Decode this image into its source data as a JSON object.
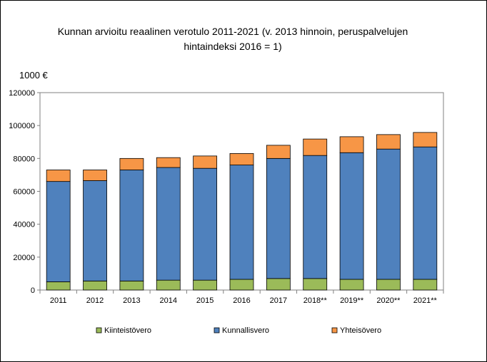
{
  "chart_data": {
    "type": "bar",
    "stacked": true,
    "title_lines": [
      "Kunnan arvioitu reaalinen verotulo 2011-2021 (v. 2013 hinnoin, peruspalvelujen",
      "hintaindeksi 2016 = 1)"
    ],
    "ylabel": "1000 €",
    "xlabel": "",
    "ylim": [
      0,
      120000
    ],
    "yticks": [
      0,
      20000,
      40000,
      60000,
      80000,
      100000,
      120000
    ],
    "grid": false,
    "legend_position": "bottom",
    "categories": [
      "2011",
      "2012",
      "2013",
      "2014",
      "2015",
      "2016",
      "2017",
      "2018**",
      "2019**",
      "2020**",
      "2021**"
    ],
    "series": [
      {
        "name": "Kiinteistövero",
        "color": "#9bbb59",
        "values": [
          5000,
          5500,
          5500,
          6000,
          6000,
          6500,
          7000,
          7000,
          6500,
          6500,
          6500
        ]
      },
      {
        "name": "Kunnallisvero",
        "color": "#4f81bd",
        "values": [
          61000,
          61000,
          67500,
          68500,
          68000,
          69500,
          73000,
          74800,
          77000,
          79200,
          80500
        ]
      },
      {
        "name": "Yhteisövero",
        "color": "#f79646",
        "values": [
          7000,
          6500,
          7000,
          6000,
          7500,
          7000,
          8000,
          10000,
          9700,
          8800,
          8800
        ]
      }
    ]
  }
}
